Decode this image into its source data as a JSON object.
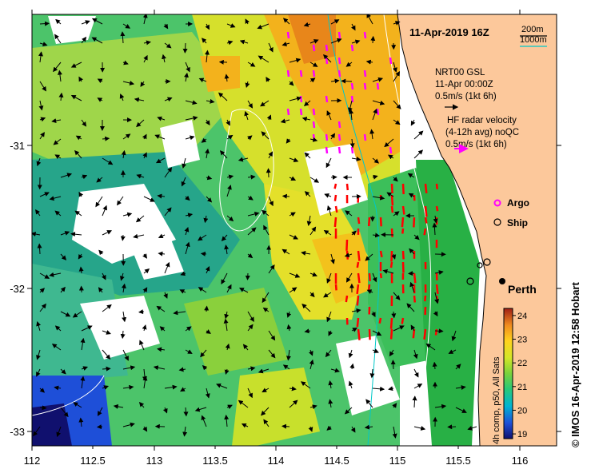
{
  "title": "11-Apr-2019 16Z",
  "scale": {
    "contour_1": "200m",
    "contour_2": "1000m",
    "color_1": "#000000",
    "color_2": "#00c8c8"
  },
  "nrt": {
    "line1": "NRT00 GSL",
    "line2": "11-Apr 00:00Z",
    "line3": "0.5m/s (1kt 6h)"
  },
  "hf": {
    "line1": "HF radar velocity",
    "line2": "(4-12h avg) noQC",
    "line3": "0.5m/s (1kt 6h)",
    "color": "#ff00ff"
  },
  "legend": {
    "argo": "Argo",
    "ship": "Ship"
  },
  "place": "Perth",
  "colorbar": {
    "label": "4h comp, p50, All Sats",
    "ticks": [
      "24",
      "23",
      "22",
      "21",
      "20",
      "19"
    ],
    "min": 18.8,
    "max": 24.3
  },
  "credit": "© IMOS 16-Apr-2019 12:58 Hobart",
  "colors": {
    "land": "#fcc89b",
    "no_data": "#ffffff",
    "radar_vector": "#ff0000",
    "argo": "#ff00ff"
  },
  "axes": {
    "x_ticks": [
      "112",
      "112.5",
      "113",
      "113.5",
      "114",
      "114.5",
      "115",
      "115.5",
      "116"
    ],
    "y_ticks": [
      "-31",
      "-32",
      "-33"
    ],
    "lon_range": [
      112,
      116.3
    ],
    "lat_range": [
      -33.1,
      -30.1
    ]
  },
  "chart_data": {
    "type": "heatmap",
    "variable": "SST",
    "x_label": "",
    "y_label": "",
    "colorbar_range": [
      18.8,
      24.3
    ]
  }
}
